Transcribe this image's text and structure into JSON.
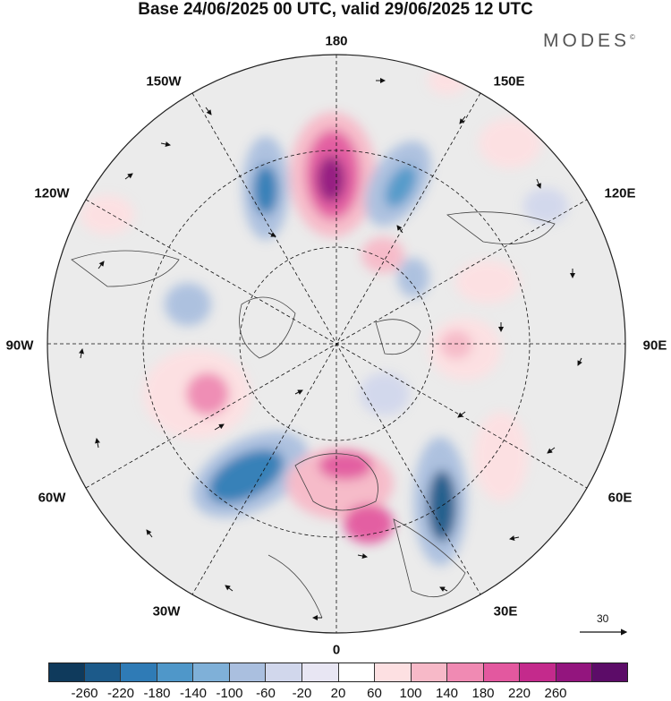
{
  "title": "Base 24/06/2025 00 UTC, valid 29/06/2025 12 UTC",
  "brand": {
    "name": "MODES",
    "mark": "©"
  },
  "map": {
    "projection": "north-polar-stereographic",
    "labels": {
      "top": "180",
      "bottom": "0",
      "left": "90W",
      "right": "90E",
      "upper_left_1": "150W",
      "upper_left_2": "120W",
      "upper_right_1": "150E",
      "upper_right_2": "120E",
      "lower_left_1": "60W",
      "lower_left_2": "30W",
      "lower_right_1": "60E",
      "lower_right_2": "30E"
    },
    "reference_vector": "30"
  },
  "colorbar": {
    "colors": [
      "#0f3a5c",
      "#1c5a8a",
      "#2f7bb6",
      "#4f97c9",
      "#7fb0d8",
      "#aabfdf",
      "#d1d7ec",
      "#e8e6f3",
      "#ffffff",
      "#fde0e2",
      "#f7b9c8",
      "#f08ab3",
      "#e3589f",
      "#c42a8c",
      "#93157e",
      "#5c0c68"
    ],
    "ticks": [
      "-260",
      "-220",
      "-180",
      "-140",
      "-100",
      "-60",
      "-20",
      "20",
      "60",
      "100",
      "140",
      "180",
      "220",
      "260"
    ]
  }
}
